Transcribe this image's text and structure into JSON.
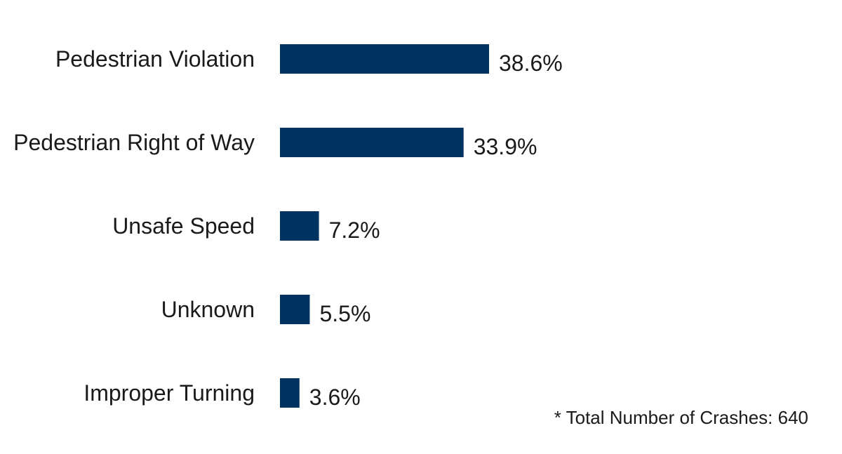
{
  "chart_data": {
    "type": "bar",
    "orientation": "horizontal",
    "categories": [
      "Pedestrian Violation",
      "Pedestrian Right of Way",
      "Unsafe Speed",
      "Unknown",
      "Improper Turning"
    ],
    "values": [
      38.6,
      33.9,
      7.2,
      5.5,
      3.6
    ],
    "value_labels": [
      "38.6%",
      "33.9%",
      "7.2%",
      "5.5%",
      "3.6%"
    ],
    "unit": "%",
    "title": "",
    "xlabel": "",
    "ylabel": "",
    "grid": false,
    "legend": "none",
    "bar_color": "#003262"
  },
  "footnote": "* Total Number of Crashes: 640"
}
